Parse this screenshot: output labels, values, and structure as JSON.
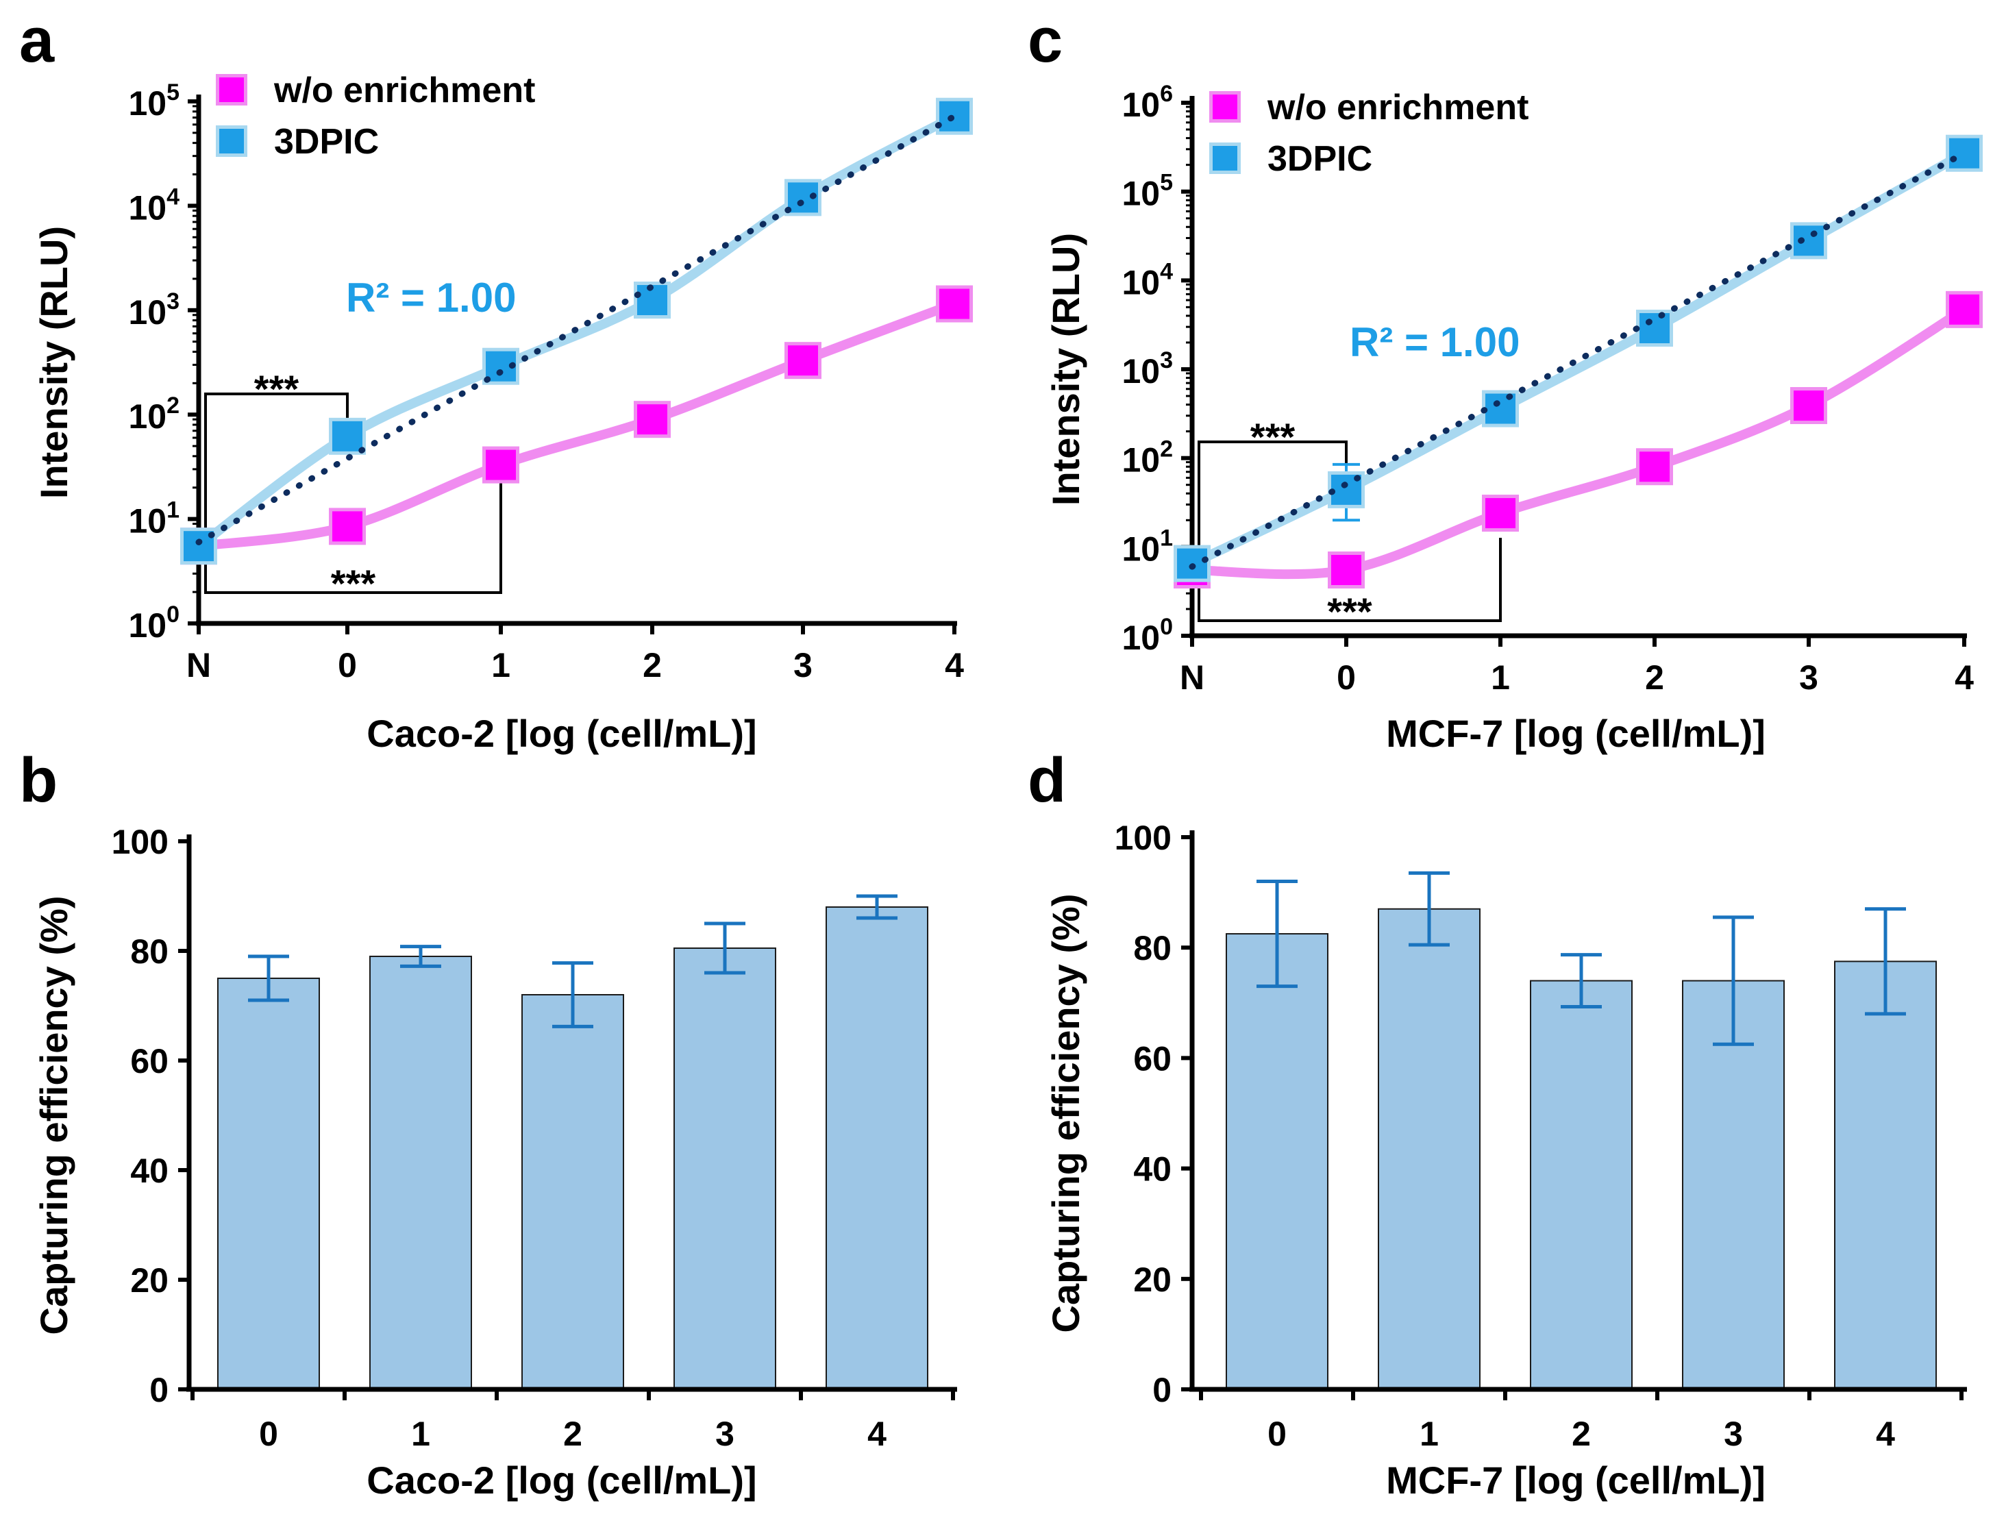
{
  "chart_data": [
    {
      "panel_label": "a",
      "type": "line",
      "yscale": "log",
      "xlabel": "Caco-2 [log (cell/mL)]",
      "ylabel": "Intensity (RLU)",
      "categories": [
        "N",
        "0",
        "1",
        "2",
        "3",
        "4"
      ],
      "y_tick_exponents": [
        0,
        1,
        2,
        3,
        4,
        5
      ],
      "y_tick_base": "10",
      "ylim": [
        1,
        100000
      ],
      "legend": [
        "w/o enrichment",
        "3DPIC"
      ],
      "legend_position": "top-left",
      "series": [
        {
          "name": "w/o enrichment",
          "color": "#ff00ff",
          "line_color": "#f08cf0",
          "values": [
            5.5,
            8.5,
            33,
            90,
            330,
            1150
          ]
        },
        {
          "name": "3DPIC",
          "color": "#1e9ee6",
          "line_color": "#a8d8f0",
          "values": [
            5.5,
            62,
            290,
            1250,
            12000,
            72000
          ]
        }
      ],
      "fit": {
        "label": "R² = 1.00",
        "color": "#1e9ee6",
        "line_color": "#0d2c5e",
        "start": 6,
        "end": 72000
      },
      "significance": [
        {
          "text": "***",
          "from": "N",
          "to": "0",
          "position": "above"
        },
        {
          "text": "***",
          "from": "N",
          "to": "1",
          "position": "below"
        }
      ]
    },
    {
      "panel_label": "b",
      "type": "bar",
      "xlabel": "Caco-2 [log (cell/mL)]",
      "ylabel": "Capturing efficiency (%)",
      "categories": [
        "0",
        "1",
        "2",
        "3",
        "4"
      ],
      "values": [
        75,
        79,
        72,
        80.5,
        88
      ],
      "errors": [
        4,
        1.8,
        5.8,
        4.5,
        2
      ],
      "ylim": [
        0,
        100
      ],
      "yticks": [
        "0",
        "20",
        "40",
        "60",
        "80",
        "100"
      ],
      "bar_color": "#9dc6e6",
      "error_color": "#1a74bf"
    },
    {
      "panel_label": "c",
      "type": "line",
      "yscale": "log",
      "xlabel": "MCF-7 [log (cell/mL)]",
      "ylabel": "Intensity (RLU)",
      "categories": [
        "N",
        "0",
        "1",
        "2",
        "3",
        "4"
      ],
      "y_tick_exponents": [
        0,
        1,
        2,
        3,
        4,
        5,
        6
      ],
      "y_tick_base": "10",
      "ylim": [
        1,
        1000000
      ],
      "legend": [
        "w/o enrichment",
        "3DPIC"
      ],
      "legend_position": "top-left",
      "series": [
        {
          "name": "w/o enrichment",
          "color": "#ff00ff",
          "line_color": "#f08cf0",
          "values": [
            5.5,
            5.5,
            24,
            80,
            390,
            4700
          ]
        },
        {
          "name": "3DPIC",
          "color": "#1e9ee6",
          "line_color": "#a8d8f0",
          "values": [
            6.5,
            44,
            360,
            2900,
            28000,
            270000
          ]
        }
      ],
      "error_bars": [
        {
          "series": "3DPIC",
          "category": "0",
          "low": 20,
          "high": 85
        }
      ],
      "fit": {
        "label": "R² = 1.00",
        "color": "#1e9ee6",
        "line_color": "#0d2c5e",
        "start": 6,
        "end": 270000
      },
      "significance": [
        {
          "text": "***",
          "from": "N",
          "to": "0",
          "position": "above"
        },
        {
          "text": "***",
          "from": "N",
          "to": "1",
          "position": "below"
        }
      ]
    },
    {
      "panel_label": "d",
      "type": "bar",
      "xlabel": "MCF-7 [log (cell/mL)]",
      "ylabel": "Capturing efficiency (%)",
      "categories": [
        "0",
        "1",
        "2",
        "3",
        "4"
      ],
      "values": [
        82.5,
        87,
        74,
        74,
        77.5
      ],
      "errors": [
        9.5,
        6.5,
        4.7,
        11.5,
        9.5
      ],
      "ylim": [
        0,
        100
      ],
      "yticks": [
        "0",
        "20",
        "40",
        "60",
        "80",
        "100"
      ],
      "bar_color": "#9dc6e6",
      "error_color": "#1a74bf"
    }
  ]
}
